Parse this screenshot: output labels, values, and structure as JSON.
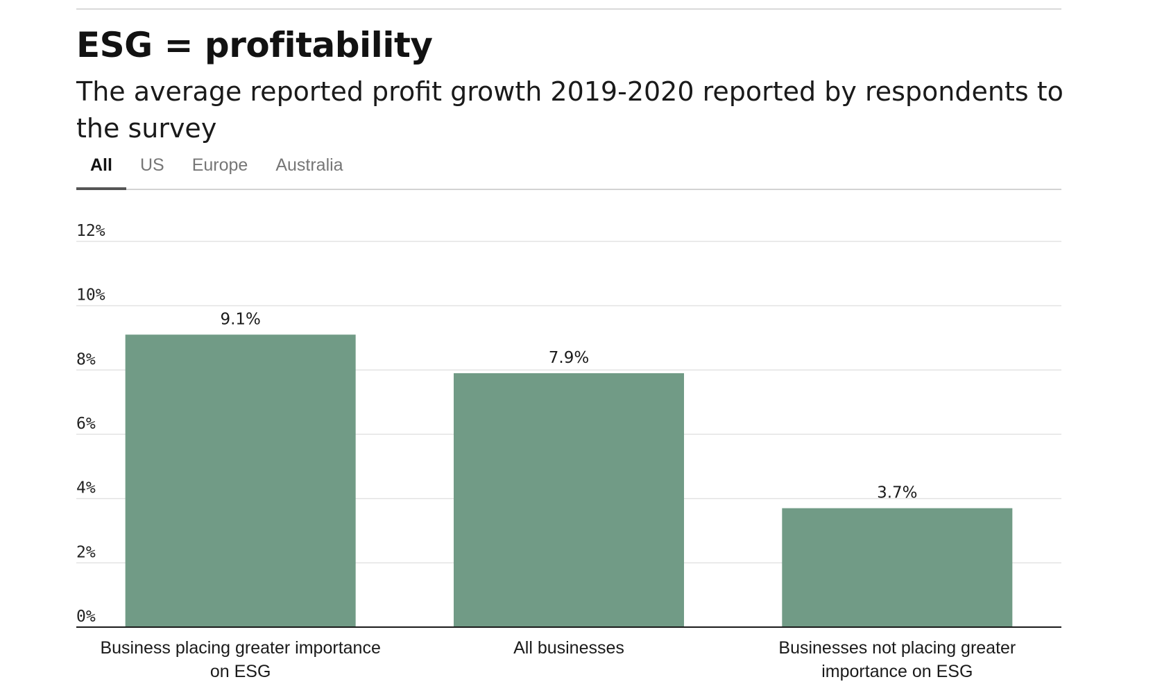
{
  "header": {
    "title": "ESG = profitability",
    "subtitle": "The average reported profit growth 2019-2020 reported by respondents to the survey"
  },
  "tabs": [
    {
      "label": "All",
      "active": true
    },
    {
      "label": "US",
      "active": false
    },
    {
      "label": "Europe",
      "active": false
    },
    {
      "label": "Australia",
      "active": false
    }
  ],
  "colors": {
    "bar": "#719b86",
    "gridline": "#e3e3e3",
    "axis": "#1a1a1a"
  },
  "chart_data": {
    "type": "bar",
    "categories": [
      [
        "Business placing greater importance",
        "on ESG"
      ],
      [
        "All businesses"
      ],
      [
        "Businesses not placing greater",
        "importance on ESG"
      ]
    ],
    "values": [
      9.1,
      7.9,
      3.7
    ],
    "value_labels": [
      "9.1%",
      "7.9%",
      "3.7%"
    ],
    "ylim": [
      0,
      12
    ],
    "yticks": [
      0,
      2,
      4,
      6,
      8,
      10,
      12
    ],
    "ytick_labels": [
      "0%",
      "2%",
      "4%",
      "6%",
      "8%",
      "10%",
      "12%"
    ],
    "grid": true
  }
}
